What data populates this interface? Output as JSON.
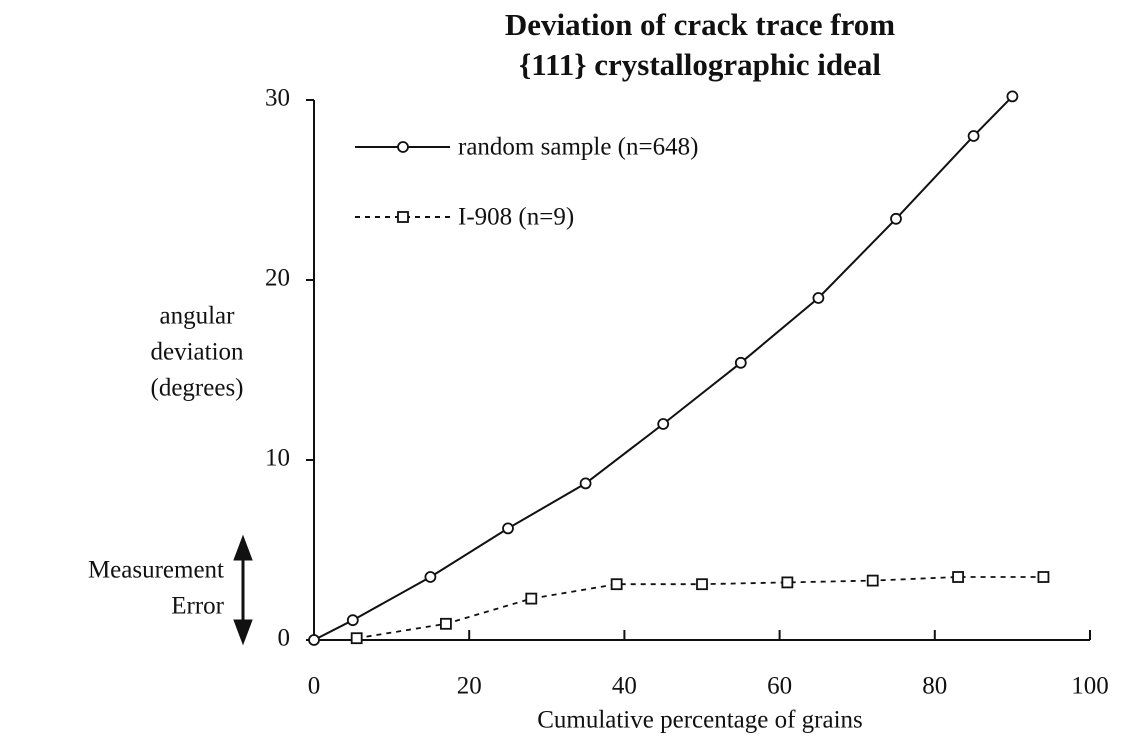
{
  "chart_data": {
    "type": "line",
    "title": [
      "Deviation of crack trace from",
      "{111} crystallographic ideal"
    ],
    "xlabel": "Cumulative percentage of grains",
    "ylabel": [
      "angular",
      "deviation",
      "(degrees)"
    ],
    "annotation": [
      "Measurement",
      "Error"
    ],
    "xlim": [
      0,
      100
    ],
    "xticks": [
      0,
      20,
      40,
      60,
      80,
      100
    ],
    "ylim": [
      0,
      30
    ],
    "yticks": [
      0,
      10,
      20,
      30
    ],
    "legend": "upper left",
    "series": [
      {
        "name": "random sample (n=648)",
        "color": "#111",
        "dash": false,
        "marker": "circle",
        "x": [
          0,
          5,
          15,
          25,
          35,
          45,
          55,
          65,
          75,
          85,
          90
        ],
        "values": [
          0,
          1.1,
          3.5,
          6.2,
          8.7,
          12,
          15.4,
          19,
          23.4,
          28,
          30.2
        ]
      },
      {
        "name": "I-908 (n=9)",
        "color": "#111",
        "dash": true,
        "marker": "square",
        "x": [
          5.5,
          17,
          28,
          39,
          50,
          61,
          72,
          83,
          94
        ],
        "values": [
          0.1,
          0.9,
          2.3,
          3.1,
          3.1,
          3.2,
          3.3,
          3.5,
          3.5
        ]
      }
    ]
  }
}
